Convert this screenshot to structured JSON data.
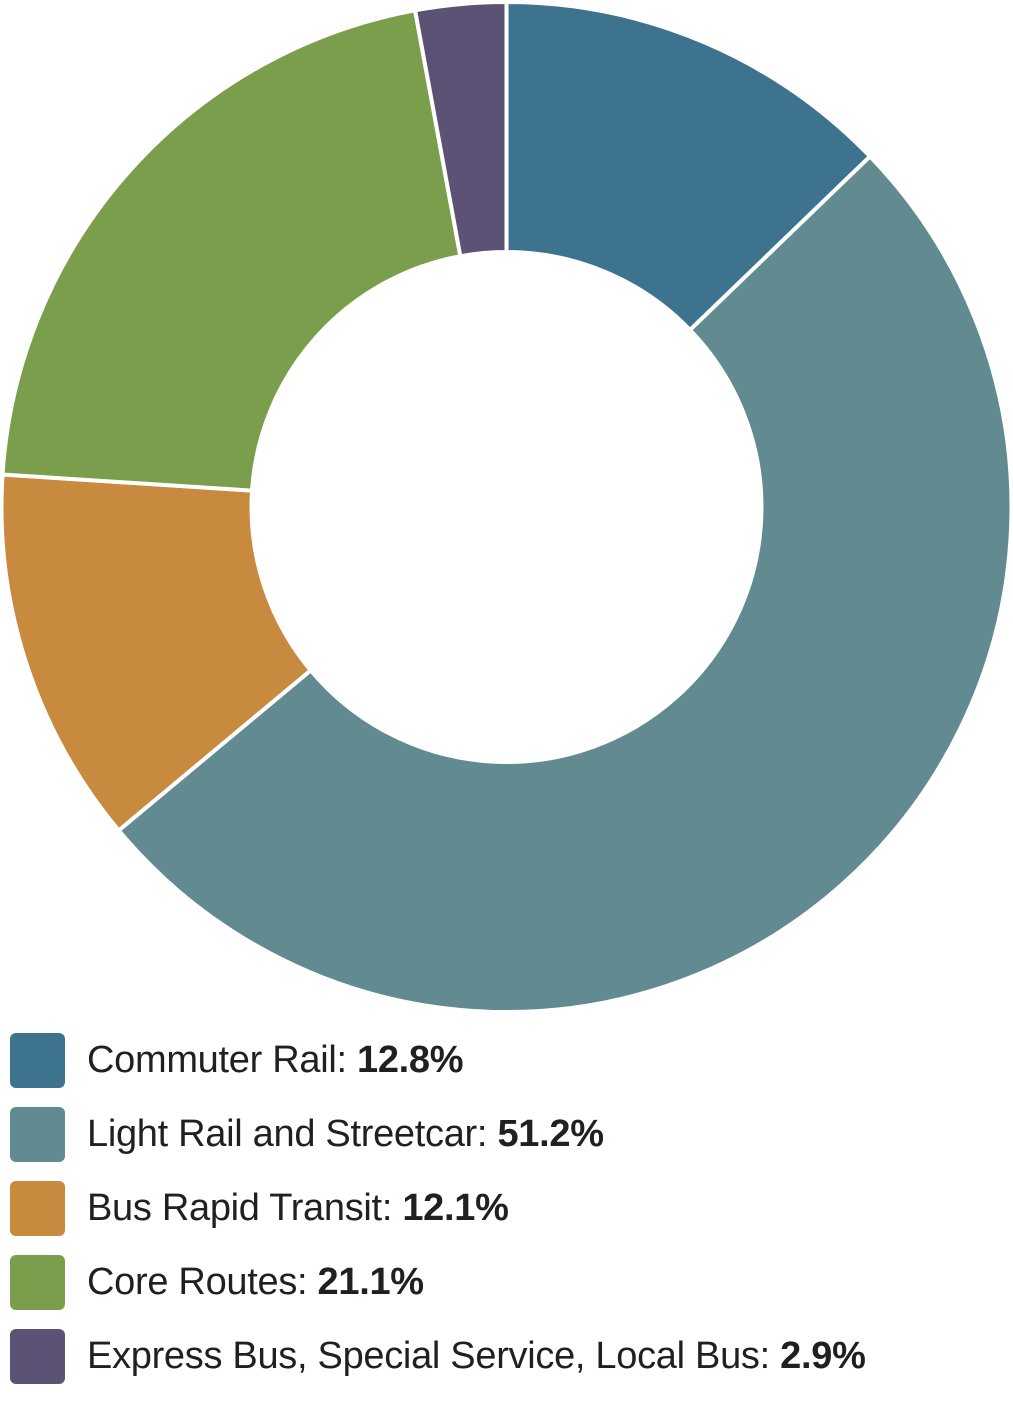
{
  "chart_data": {
    "type": "pie",
    "variant": "donut",
    "title": "",
    "legend_placement": "bottom",
    "slices": [
      {
        "label": "Commuter Rail",
        "value": 12.8,
        "value_label": "12.8%",
        "color": "#3e738f"
      },
      {
        "label": "Light Rail and Streetcar",
        "value": 51.2,
        "value_label": "51.2%",
        "color": "#618b91"
      },
      {
        "label": "Bus Rapid Transit",
        "value": 12.1,
        "value_label": "12.1%",
        "color": "#c78a3e"
      },
      {
        "label": "Core Routes",
        "value": 21.1,
        "value_label": "21.1%",
        "color": "#7a9e4b"
      },
      {
        "label": "Express Bus, Special Service, Local Bus",
        "value": 2.9,
        "value_label": "2.9%",
        "color": "#5b5276"
      }
    ]
  }
}
